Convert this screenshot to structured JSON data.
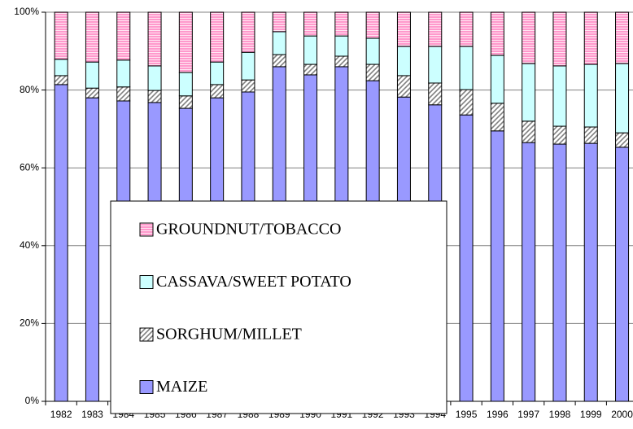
{
  "chart_data": {
    "type": "stacked_bar",
    "categories": [
      "1982",
      "1983",
      "1984",
      "1985",
      "1986",
      "1987",
      "1988",
      "1989",
      "1990",
      "1991",
      "1992",
      "1993",
      "1994",
      "1995",
      "1996",
      "1997",
      "1998",
      "1999",
      "2000"
    ],
    "series": [
      {
        "name": "MAIZE",
        "color": "#9999ff",
        "values": [
          81.4,
          78.0,
          77.2,
          76.8,
          75.3,
          78.0,
          79.5,
          86.0,
          83.9,
          86.0,
          82.4,
          78.2,
          76.2,
          73.6,
          69.5,
          66.5,
          66.1,
          66.3,
          65.3
        ]
      },
      {
        "name": "SORGHUM/MILLET",
        "color": "#808080",
        "values": [
          2.3,
          2.5,
          3.6,
          3.1,
          3.2,
          3.4,
          3.1,
          3.1,
          2.7,
          2.7,
          4.2,
          5.5,
          5.6,
          6.5,
          7.1,
          5.5,
          4.6,
          4.2,
          3.7
        ]
      },
      {
        "name": "CASSAVA/SWEET POTATO",
        "color": "#ccffff",
        "values": [
          4.2,
          6.7,
          6.9,
          6.3,
          6.0,
          5.8,
          7.1,
          5.9,
          7.3,
          5.2,
          6.7,
          7.5,
          9.4,
          11.1,
          12.3,
          14.8,
          15.5,
          16.1,
          17.8
        ]
      },
      {
        "name": "GROUNDNUT/TOBACCO",
        "color": "#ff99cc",
        "values": [
          12.1,
          12.8,
          12.3,
          13.8,
          15.5,
          12.8,
          10.3,
          5.0,
          6.1,
          6.1,
          6.7,
          8.8,
          8.8,
          8.8,
          11.1,
          13.2,
          13.8,
          13.4,
          13.2
        ]
      }
    ],
    "ylim": [
      0,
      100
    ],
    "yticks": [
      {
        "value": 0,
        "label": "0%"
      },
      {
        "value": 20,
        "label": "20%"
      },
      {
        "value": 40,
        "label": "40%"
      },
      {
        "value": 60,
        "label": "60%"
      },
      {
        "value": 80,
        "label": "80%"
      },
      {
        "value": 100,
        "label": "100%"
      }
    ],
    "grid": true
  }
}
